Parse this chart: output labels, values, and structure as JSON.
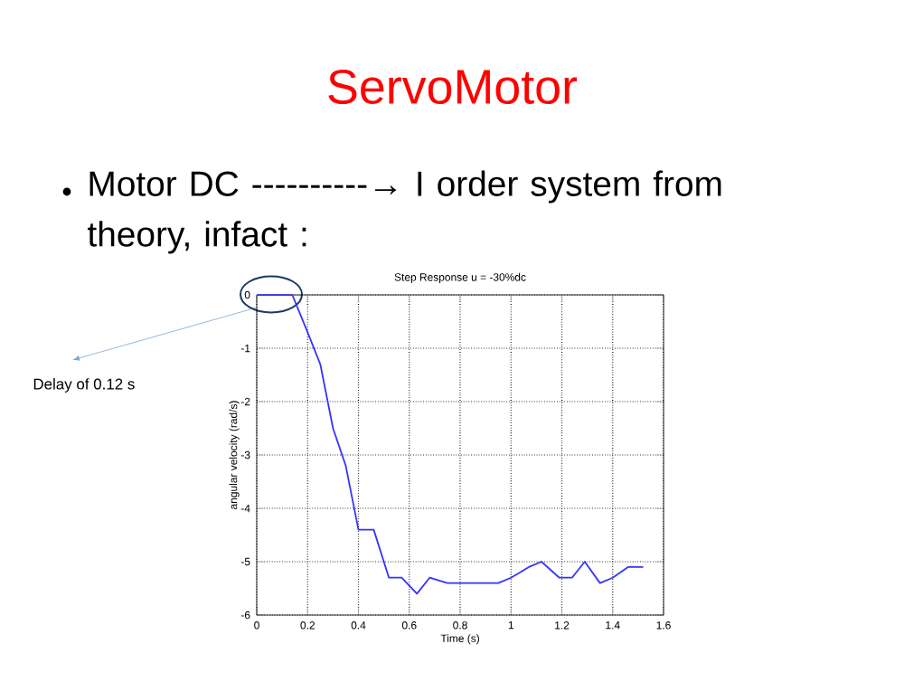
{
  "chart_data": {
    "type": "line",
    "title": "Step Response u = -30%dc",
    "xlabel": "Time (s)",
    "ylabel": "angular velocity (rad/s)",
    "annotations": [
      "ServoMotor",
      "Motor DC ----------→ I order system from theory, infact :",
      "Delay of 0.12 s"
    ],
    "xlim": [
      0,
      1.6
    ],
    "ylim": [
      -6,
      0
    ],
    "xticks": [
      0,
      0.2,
      0.4,
      0.6,
      0.8,
      1,
      1.2,
      1.4,
      1.6
    ],
    "yticks": [
      -6,
      -5,
      -4,
      -3,
      -2,
      -1,
      0
    ],
    "grid": true,
    "line_style": "solid",
    "series": [
      {
        "color": "#3333ff",
        "x": [
          0,
          0.14,
          0.2,
          0.25,
          0.3,
          0.35,
          0.4,
          0.46,
          0.52,
          0.57,
          0.63,
          0.68,
          0.75,
          0.95,
          1.0,
          1.07,
          1.12,
          1.19,
          1.24,
          1.29,
          1.35,
          1.4,
          1.46,
          1.52
        ],
        "values": [
          0,
          0,
          -0.7,
          -1.3,
          -2.5,
          -3.2,
          -4.4,
          -4.4,
          -5.3,
          -5.3,
          -5.6,
          -5.3,
          -5.4,
          -5.4,
          -5.3,
          -5.1,
          -5.0,
          -5.3,
          -5.3,
          -5.0,
          -5.4,
          -5.3,
          -5.1,
          -5.1
        ]
      }
    ]
  }
}
